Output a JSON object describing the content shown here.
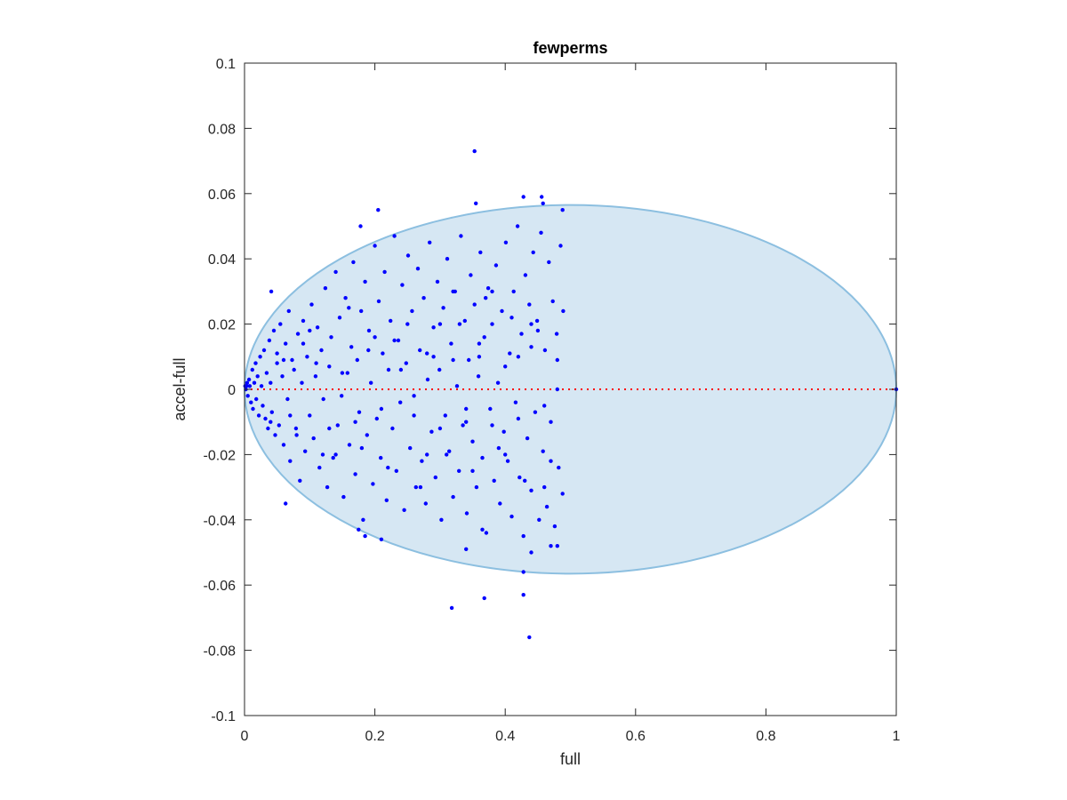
{
  "chart_data": {
    "type": "scatter",
    "title": "fewperms",
    "xlabel": "full",
    "ylabel": "accel-full",
    "xlim": [
      0,
      1
    ],
    "ylim": [
      -0.1,
      0.1
    ],
    "xticks": [
      0,
      0.2,
      0.4,
      0.6,
      0.8,
      1
    ],
    "xtick_labels": [
      "0",
      "0.2",
      "0.4",
      "0.6",
      "0.8",
      "1"
    ],
    "yticks": [
      -0.1,
      -0.08,
      -0.06,
      -0.04,
      -0.02,
      0,
      0.02,
      0.04,
      0.06,
      0.08,
      0.1
    ],
    "ytick_labels": [
      "-0.1",
      "-0.08",
      "-0.06",
      "-0.04",
      "-0.02",
      "0",
      "0.02",
      "0.04",
      "0.06",
      "0.08",
      "0.1"
    ],
    "grid": false,
    "box": true,
    "reference_line": {
      "y": 0,
      "style": "dotted",
      "color": "#ff0000"
    },
    "region": {
      "shape": "ellipse",
      "center": [
        0.5,
        0.0
      ],
      "semi_axes": [
        0.5,
        0.0565
      ],
      "fill": "#d6e7f3",
      "stroke": "#8cbfe0"
    },
    "series": [
      {
        "marker_color": "#0000ff",
        "points": [
          [
            0.003,
            0.001
          ],
          [
            0.005,
            -0.002
          ],
          [
            0.007,
            0.003
          ],
          [
            0.008,
            0.001
          ],
          [
            0.01,
            -0.004
          ],
          [
            0.012,
            0.006
          ],
          [
            0.013,
            -0.006
          ],
          [
            0.015,
            0.002
          ],
          [
            0.017,
            0.008
          ],
          [
            0.018,
            -0.003
          ],
          [
            0.02,
            0.004
          ],
          [
            0.022,
            -0.008
          ],
          [
            0.024,
            0.01
          ],
          [
            0.026,
            0.001
          ],
          [
            0.028,
            -0.005
          ],
          [
            0.03,
            0.012
          ],
          [
            0.032,
            -0.009
          ],
          [
            0.034,
            0.005
          ],
          [
            0.036,
            -0.012
          ],
          [
            0.038,
            0.015
          ],
          [
            0.04,
            0.002
          ],
          [
            0.042,
            -0.007
          ],
          [
            0.045,
            0.018
          ],
          [
            0.047,
            -0.014
          ],
          [
            0.05,
            0.008
          ],
          [
            0.053,
            -0.011
          ],
          [
            0.055,
            0.02
          ],
          [
            0.058,
            0.004
          ],
          [
            0.06,
            -0.017
          ],
          [
            0.063,
            0.014
          ],
          [
            0.066,
            -0.003
          ],
          [
            0.068,
            0.024
          ],
          [
            0.07,
            -0.022
          ],
          [
            0.073,
            0.009
          ],
          [
            0.076,
            0.006
          ],
          [
            0.079,
            -0.012
          ],
          [
            0.082,
            0.017
          ],
          [
            0.085,
            -0.028
          ],
          [
            0.088,
            0.002
          ],
          [
            0.09,
            0.021
          ],
          [
            0.093,
            -0.019
          ],
          [
            0.096,
            0.01
          ],
          [
            0.1,
            -0.008
          ],
          [
            0.103,
            0.026
          ],
          [
            0.106,
            -0.015
          ],
          [
            0.109,
            0.004
          ],
          [
            0.112,
            0.019
          ],
          [
            0.115,
            -0.024
          ],
          [
            0.118,
            0.012
          ],
          [
            0.121,
            -0.003
          ],
          [
            0.124,
            0.031
          ],
          [
            0.127,
            -0.03
          ],
          [
            0.13,
            0.007
          ],
          [
            0.133,
            0.016
          ],
          [
            0.136,
            -0.021
          ],
          [
            0.14,
            0.036
          ],
          [
            0.143,
            -0.011
          ],
          [
            0.146,
            0.022
          ],
          [
            0.149,
            -0.002
          ],
          [
            0.152,
            -0.033
          ],
          [
            0.155,
            0.028
          ],
          [
            0.158,
            0.005
          ],
          [
            0.161,
            -0.017
          ],
          [
            0.164,
            0.013
          ],
          [
            0.167,
            0.039
          ],
          [
            0.17,
            -0.026
          ],
          [
            0.173,
            0.009
          ],
          [
            0.176,
            -0.007
          ],
          [
            0.179,
            0.024
          ],
          [
            0.182,
            -0.04
          ],
          [
            0.185,
            0.033
          ],
          [
            0.188,
            -0.014
          ],
          [
            0.191,
            0.018
          ],
          [
            0.194,
            0.002
          ],
          [
            0.197,
            -0.029
          ],
          [
            0.2,
            0.044
          ],
          [
            0.203,
            -0.009
          ],
          [
            0.206,
            0.027
          ],
          [
            0.209,
            -0.021
          ],
          [
            0.212,
            0.011
          ],
          [
            0.215,
            0.036
          ],
          [
            0.218,
            -0.034
          ],
          [
            0.221,
            0.006
          ],
          [
            0.224,
            0.021
          ],
          [
            0.227,
            -0.012
          ],
          [
            0.23,
            0.047
          ],
          [
            0.233,
            -0.025
          ],
          [
            0.236,
            0.015
          ],
          [
            0.239,
            -0.004
          ],
          [
            0.242,
            0.032
          ],
          [
            0.245,
            -0.037
          ],
          [
            0.248,
            0.008
          ],
          [
            0.251,
            0.041
          ],
          [
            0.254,
            -0.018
          ],
          [
            0.257,
            0.024
          ],
          [
            0.26,
            -0.002
          ],
          [
            0.263,
            -0.03
          ],
          [
            0.266,
            0.037
          ],
          [
            0.269,
            0.012
          ],
          [
            0.272,
            -0.022
          ],
          [
            0.275,
            0.028
          ],
          [
            0.278,
            -0.035
          ],
          [
            0.281,
            0.003
          ],
          [
            0.284,
            0.045
          ],
          [
            0.287,
            -0.013
          ],
          [
            0.29,
            0.019
          ],
          [
            0.293,
            -0.027
          ],
          [
            0.296,
            0.033
          ],
          [
            0.299,
            0.006
          ],
          [
            0.302,
            -0.04
          ],
          [
            0.305,
            0.025
          ],
          [
            0.308,
            -0.008
          ],
          [
            0.311,
            0.04
          ],
          [
            0.314,
            -0.019
          ],
          [
            0.317,
            0.014
          ],
          [
            0.32,
            -0.033
          ],
          [
            0.323,
            0.03
          ],
          [
            0.326,
            0.001
          ],
          [
            0.329,
            -0.025
          ],
          [
            0.332,
            0.047
          ],
          [
            0.335,
            -0.011
          ],
          [
            0.338,
            0.021
          ],
          [
            0.341,
            -0.038
          ],
          [
            0.344,
            0.009
          ],
          [
            0.347,
            0.035
          ],
          [
            0.35,
            -0.016
          ],
          [
            0.353,
            0.026
          ],
          [
            0.356,
            -0.03
          ],
          [
            0.359,
            0.004
          ],
          [
            0.362,
            0.042
          ],
          [
            0.365,
            -0.021
          ],
          [
            0.368,
            0.016
          ],
          [
            0.371,
            -0.044
          ],
          [
            0.374,
            0.031
          ],
          [
            0.377,
            -0.006
          ],
          [
            0.38,
            0.02
          ],
          [
            0.383,
            -0.028
          ],
          [
            0.386,
            0.038
          ],
          [
            0.389,
            0.002
          ],
          [
            0.392,
            -0.035
          ],
          [
            0.395,
            0.024
          ],
          [
            0.398,
            -0.013
          ],
          [
            0.401,
            0.045
          ],
          [
            0.404,
            -0.022
          ],
          [
            0.407,
            0.011
          ],
          [
            0.41,
            -0.039
          ],
          [
            0.413,
            0.03
          ],
          [
            0.416,
            -0.004
          ],
          [
            0.419,
            0.05
          ],
          [
            0.422,
            -0.027
          ],
          [
            0.425,
            0.017
          ],
          [
            0.428,
            -0.045
          ],
          [
            0.431,
            0.035
          ],
          [
            0.434,
            -0.015
          ],
          [
            0.437,
            0.026
          ],
          [
            0.44,
            -0.031
          ],
          [
            0.443,
            0.042
          ],
          [
            0.446,
            -0.007
          ],
          [
            0.449,
            0.021
          ],
          [
            0.452,
            -0.04
          ],
          [
            0.455,
            0.048
          ],
          [
            0.458,
            -0.019
          ],
          [
            0.461,
            0.012
          ],
          [
            0.464,
            -0.036
          ],
          [
            0.467,
            0.039
          ],
          [
            0.47,
            -0.01
          ],
          [
            0.473,
            0.027
          ],
          [
            0.476,
            -0.042
          ],
          [
            0.479,
            0.017
          ],
          [
            0.482,
            -0.024
          ],
          [
            0.485,
            0.044
          ],
          [
            0.488,
            -0.032
          ],
          [
            0.489,
            0.024
          ],
          [
            0.3,
            0.02
          ],
          [
            0.32,
            0.03
          ],
          [
            0.28,
            -0.02
          ],
          [
            0.34,
            -0.01
          ],
          [
            0.36,
            0.01
          ],
          [
            0.38,
            0.03
          ],
          [
            0.4,
            -0.02
          ],
          [
            0.42,
            0.01
          ],
          [
            0.44,
            0.02
          ],
          [
            0.46,
            -0.03
          ],
          [
            0.48,
            0.0
          ],
          [
            0.25,
            0.02
          ],
          [
            0.27,
            -0.03
          ],
          [
            0.29,
            0.01
          ],
          [
            0.31,
            -0.02
          ],
          [
            0.33,
            0.02
          ],
          [
            0.35,
            -0.025
          ],
          [
            0.37,
            0.028
          ],
          [
            0.39,
            -0.018
          ],
          [
            0.41,
            0.022
          ],
          [
            0.43,
            -0.028
          ],
          [
            0.45,
            0.018
          ],
          [
            0.47,
            -0.022
          ],
          [
            0.24,
            0.006
          ],
          [
            0.26,
            -0.008
          ],
          [
            0.28,
            0.011
          ],
          [
            0.3,
            -0.012
          ],
          [
            0.32,
            0.009
          ],
          [
            0.34,
            -0.006
          ],
          [
            0.36,
            0.014
          ],
          [
            0.38,
            -0.011
          ],
          [
            0.4,
            0.007
          ],
          [
            0.42,
            -0.009
          ],
          [
            0.44,
            0.013
          ],
          [
            0.46,
            -0.005
          ],
          [
            0.48,
            0.009
          ],
          [
            0.15,
            0.005
          ],
          [
            0.17,
            -0.01
          ],
          [
            0.19,
            0.012
          ],
          [
            0.21,
            -0.006
          ],
          [
            0.23,
            0.015
          ],
          [
            0.14,
            -0.02
          ],
          [
            0.16,
            0.025
          ],
          [
            0.18,
            -0.018
          ],
          [
            0.2,
            0.016
          ],
          [
            0.22,
            -0.024
          ],
          [
            0.11,
            0.008
          ],
          [
            0.13,
            -0.012
          ],
          [
            0.09,
            0.014
          ],
          [
            0.07,
            -0.008
          ],
          [
            0.05,
            0.011
          ],
          [
            0.04,
            -0.01
          ],
          [
            0.06,
            0.009
          ],
          [
            0.08,
            -0.014
          ],
          [
            0.1,
            0.018
          ],
          [
            0.12,
            -0.02
          ],
          [
            0.353,
            0.073
          ],
          [
            0.355,
            0.057
          ],
          [
            0.428,
            0.059
          ],
          [
            0.456,
            0.059
          ],
          [
            0.458,
            0.057
          ],
          [
            0.205,
            0.055
          ],
          [
            0.178,
            0.05
          ],
          [
            0.437,
            -0.076
          ],
          [
            0.318,
            -0.067
          ],
          [
            0.368,
            -0.064
          ],
          [
            0.428,
            -0.063
          ],
          [
            0.428,
            -0.056
          ],
          [
            0.063,
            -0.035
          ],
          [
            0.175,
            -0.043
          ],
          [
            0.185,
            -0.045
          ],
          [
            0.21,
            -0.046
          ],
          [
            0.34,
            -0.049
          ],
          [
            0.365,
            -0.043
          ],
          [
            0.44,
            -0.05
          ],
          [
            0.48,
            -0.048
          ],
          [
            0.47,
            -0.048
          ],
          [
            0.041,
            0.03
          ],
          [
            0.488,
            0.055
          ],
          [
            0.001,
            0.001
          ],
          [
            0.002,
            0.0
          ],
          [
            0.004,
            0.002
          ],
          [
            1.0,
            0.0
          ]
        ]
      }
    ]
  }
}
